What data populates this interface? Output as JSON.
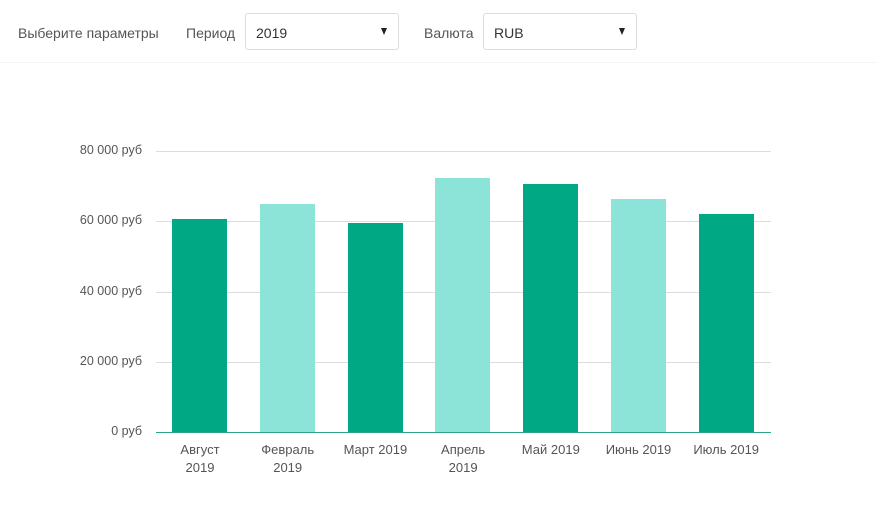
{
  "toolbar": {
    "title": "Выберите параметры",
    "period_label": "Период",
    "period_value": "2019",
    "currency_label": "Валюта",
    "currency_value": "RUB"
  },
  "colors": {
    "dark": "#00a884",
    "light": "#8ce3d8",
    "axis": "#2aa58a",
    "grid": "#dcdcdc"
  },
  "chart_data": {
    "type": "bar",
    "title": "",
    "xlabel": "",
    "ylabel": "",
    "ylim": [
      0,
      80000
    ],
    "grid": true,
    "y_ticks": [
      "0 руб",
      "20 000 руб",
      "40 000 руб",
      "60 000 руб",
      "80 000 руб"
    ],
    "y_tick_values": [
      0,
      20000,
      40000,
      60000,
      80000
    ],
    "categories": [
      "Август 2019",
      "Февраль 2019",
      "Март 2019",
      "Апрель 2019",
      "Май 2019",
      "Июнь 2019",
      "Июль 2019"
    ],
    "category_lines": [
      [
        "Август",
        "2019"
      ],
      [
        "Февраль",
        "2019"
      ],
      [
        "Март 2019",
        ""
      ],
      [
        "Апрель",
        "2019"
      ],
      [
        "Май 2019",
        ""
      ],
      [
        "Июнь 2019",
        ""
      ],
      [
        "Июль 2019",
        ""
      ]
    ],
    "values": [
      60600,
      64900,
      59400,
      72300,
      70600,
      66300,
      62000
    ],
    "bar_colors": [
      "#00a884",
      "#8ce3d8",
      "#00a884",
      "#8ce3d8",
      "#00a884",
      "#8ce3d8",
      "#00a884"
    ]
  }
}
